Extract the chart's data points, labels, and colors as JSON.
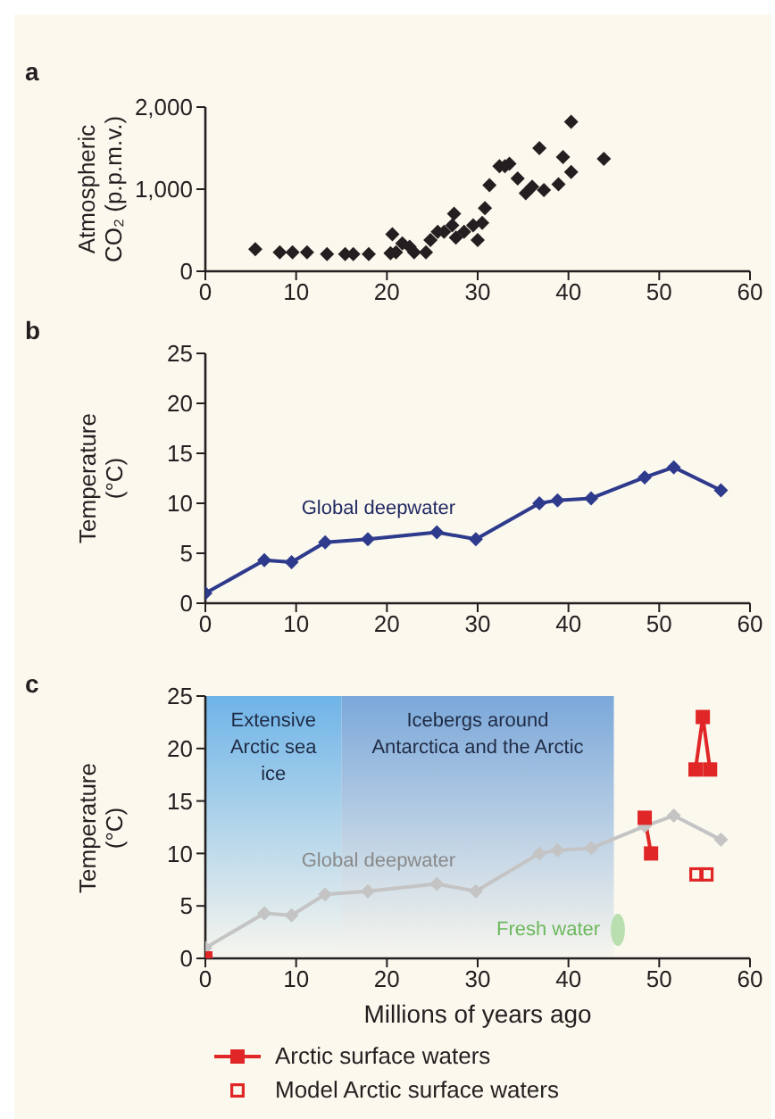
{
  "chart_data": [
    {
      "type": "scatter",
      "title": "a",
      "ylabel": "Atmospheric CO₂ (p.p.m.v.)",
      "xlim": [
        0,
        60
      ],
      "xticks": [
        0,
        10,
        20,
        30,
        40,
        50,
        60
      ],
      "ylim": [
        0,
        2000
      ],
      "yticks": [
        0,
        {
          "value": 1000,
          "label": "1,000"
        },
        {
          "value": 2000,
          "label": "2,000"
        }
      ],
      "legend": false,
      "marker": "diamond",
      "x": [
        5.5,
        8.2,
        9.6,
        11.2,
        13.4,
        15.4,
        16.3,
        18,
        20.4,
        20.6,
        21,
        21.7,
        22.5,
        23,
        24.3,
        24.8,
        25.6,
        26.3,
        27.2,
        27.4,
        27.6,
        28.5,
        29.5,
        30,
        30.5,
        30.8,
        31.3,
        32.4,
        33,
        33.5,
        34.4,
        35.3,
        36,
        36.8,
        37.3,
        38.9,
        39.4,
        40.3,
        40.3,
        43.9
      ],
      "series": [
        {
          "color": "#231f20",
          "values": [
            270,
            230,
            230,
            230,
            210,
            210,
            210,
            210,
            220,
            450,
            230,
            340,
            300,
            230,
            230,
            380,
            480,
            480,
            560,
            700,
            410,
            480,
            560,
            380,
            590,
            770,
            1050,
            1280,
            1280,
            1310,
            1130,
            950,
            1030,
            1500,
            990,
            1060,
            1390,
            1820,
            1210,
            1370
          ]
        }
      ]
    },
    {
      "type": "line",
      "title": "b",
      "ylabel": "Temperature (°C)",
      "xlim": [
        0,
        60
      ],
      "xticks": [
        0,
        10,
        20,
        30,
        40,
        50,
        60
      ],
      "ylim": [
        0,
        25
      ],
      "yticks": [
        0,
        5,
        10,
        15,
        20,
        25
      ],
      "legend": false,
      "marker": "diamond",
      "x": [
        0,
        6.5,
        9.5,
        13.2,
        17.9,
        25.5,
        29.8,
        36.8,
        38.8,
        42.5,
        48.4,
        51.6,
        56.8
      ],
      "series": [
        {
          "name": "Global deepwater",
          "color": "#2e3a8c",
          "values": [
            1,
            4.3,
            4.1,
            6.1,
            6.4,
            7.1,
            6.4,
            10,
            10.3,
            10.5,
            12.6,
            13.6,
            11.3
          ]
        }
      ]
    },
    {
      "type": "line",
      "title": "c",
      "xlabel": "Millions of years ago",
      "ylabel": "Temperature (°C)",
      "xlim": [
        0,
        60
      ],
      "xticks": [
        0,
        10,
        20,
        30,
        40,
        50,
        60
      ],
      "ylim": [
        0,
        25
      ],
      "yticks": [
        0,
        5,
        10,
        15,
        20,
        25
      ],
      "legend": "bottom",
      "bands": [
        {
          "axis": "x",
          "from": 0,
          "to": 15,
          "label": "Extensive Arctic sea ice",
          "color": "#6fb4e8"
        },
        {
          "axis": "x",
          "from": 15,
          "to": 45,
          "label": "Icebergs around Antarctica and the Arctic",
          "color": "#7ba8da"
        }
      ],
      "annotations": [
        "Fresh water"
      ],
      "series": [
        {
          "name": "Global deepwater",
          "color": "#c4c4c4",
          "marker": "diamond",
          "x": [
            0,
            6.5,
            9.5,
            13.2,
            17.9,
            25.5,
            29.8,
            36.8,
            38.8,
            42.5,
            48.4,
            51.6,
            56.8
          ],
          "values": [
            1,
            4.3,
            4.1,
            6.1,
            6.4,
            7.1,
            6.4,
            10,
            10.3,
            10.5,
            12.6,
            13.6,
            11.3
          ]
        },
        {
          "name": "Arctic surface waters",
          "color": "#e02626",
          "marker": "square",
          "x": [
            0,
            24,
            48.4,
            49.1,
            51.5,
            54,
            54.8,
            55.6
          ],
          "values": [
            0,
            null,
            13.4,
            10,
            null,
            18,
            23,
            18
          ]
        },
        {
          "name": "Model Arctic surface waters",
          "type": "scatter",
          "color": "#e02626",
          "marker": "square",
          "x": [
            54.1,
            55.2
          ],
          "values": [
            8,
            8
          ]
        }
      ]
    }
  ]
}
